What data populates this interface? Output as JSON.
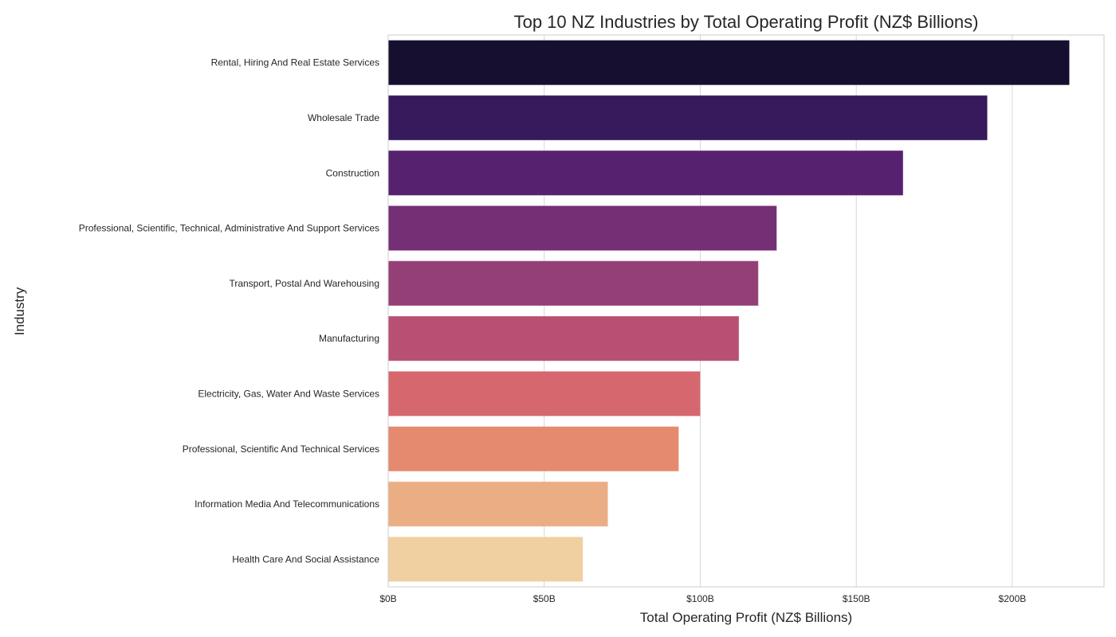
{
  "chart_data": {
    "type": "bar",
    "orientation": "horizontal",
    "title": "Top 10 NZ Industries by Total Operating Profit (NZ$ Billions)",
    "xlabel": "Total Operating Profit (NZ$ Billions)",
    "ylabel": "Industry",
    "categories": [
      "Rental, Hiring And Real Estate Services",
      "Wholesale Trade",
      "Construction",
      "Professional, Scientific, Technical, Administrative And Support Services",
      "Transport, Postal And Warehousing",
      "Manufacturing",
      "Electricity, Gas, Water And Waste Services",
      "Professional, Scientific And Technical Services",
      "Information Media And Telecommunications",
      "Health Care And Social Assistance"
    ],
    "values": [
      218.2,
      191.9,
      164.9,
      124.4,
      118.5,
      112.3,
      99.9,
      93.0,
      70.3,
      62.3
    ],
    "colors": [
      "#160f30",
      "#361a5c",
      "#56216f",
      "#752f75",
      "#943f76",
      "#b85074",
      "#d6676f",
      "#e68a6f",
      "#ebad84",
      "#f0d0a0"
    ],
    "xlim": [
      0,
      229.4
    ],
    "xticks": [
      0,
      50,
      100,
      150,
      200
    ],
    "xtick_labels": [
      "$0B",
      "$50B",
      "$100B",
      "$150B",
      "$200B"
    ],
    "grid": "vertical",
    "palette": "magma"
  }
}
